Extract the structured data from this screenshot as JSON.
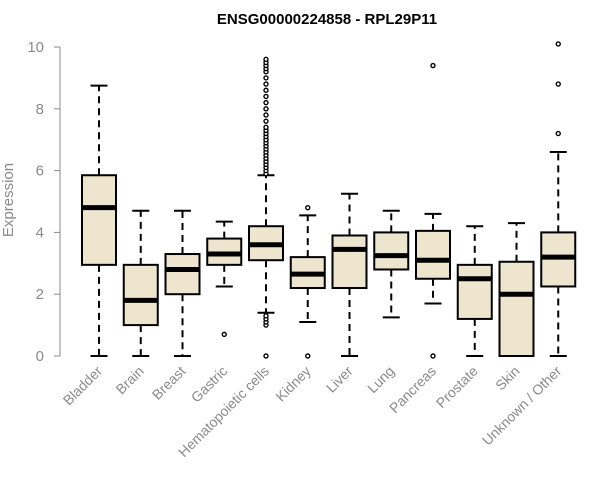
{
  "chart_data": {
    "type": "boxplot",
    "title": "ENSG00000224858 - RPL29P11",
    "xlabel": "",
    "ylabel": "Expression",
    "ylim": [
      0,
      10.5
    ],
    "yticks": [
      0,
      2,
      4,
      6,
      8,
      10
    ],
    "box_fill": "#ede5cd",
    "box_stroke": "#000000",
    "axis_color": "#8a8a8a",
    "categories": [
      "Bladder",
      "Brain",
      "Breast",
      "Gastric",
      "Hematopoietic cells",
      "Kidney",
      "Liver",
      "Lung",
      "Pancreas",
      "Prostate",
      "Skin",
      "Unknown / Other"
    ],
    "boxes": [
      {
        "name": "Bladder",
        "whisker_low": 0.0,
        "q1": 2.95,
        "median": 4.8,
        "q3": 5.85,
        "whisker_high": 8.75,
        "outliers": []
      },
      {
        "name": "Brain",
        "whisker_low": 0.0,
        "q1": 1.0,
        "median": 1.8,
        "q3": 2.95,
        "whisker_high": 4.7,
        "outliers": []
      },
      {
        "name": "Breast",
        "whisker_low": 0.0,
        "q1": 2.0,
        "median": 2.8,
        "q3": 3.3,
        "whisker_high": 4.7,
        "outliers": []
      },
      {
        "name": "Gastric",
        "whisker_low": 2.25,
        "q1": 2.95,
        "median": 3.3,
        "q3": 3.8,
        "whisker_high": 4.35,
        "outliers": [
          0.7
        ]
      },
      {
        "name": "Hematopoietic cells",
        "whisker_low": 1.4,
        "q1": 3.1,
        "median": 3.6,
        "q3": 4.2,
        "whisker_high": 5.85,
        "outliers": [
          0.0,
          1.0,
          1.1,
          1.2,
          1.3,
          5.9,
          6.0,
          6.1,
          6.2,
          6.3,
          6.4,
          6.5,
          6.6,
          6.7,
          6.8,
          6.9,
          7.0,
          7.1,
          7.2,
          7.3,
          7.4,
          7.6,
          7.8,
          8.0,
          8.2,
          8.4,
          8.6,
          8.8,
          9.0,
          9.2,
          9.3,
          9.4,
          9.5,
          9.6
        ]
      },
      {
        "name": "Kidney",
        "whisker_low": 1.1,
        "q1": 2.2,
        "median": 2.65,
        "q3": 3.2,
        "whisker_high": 4.55,
        "outliers": [
          0.0,
          4.8
        ]
      },
      {
        "name": "Liver",
        "whisker_low": 0.0,
        "q1": 2.2,
        "median": 3.45,
        "q3": 3.9,
        "whisker_high": 5.25,
        "outliers": []
      },
      {
        "name": "Lung",
        "whisker_low": 1.25,
        "q1": 2.8,
        "median": 3.25,
        "q3": 4.0,
        "whisker_high": 4.7,
        "outliers": []
      },
      {
        "name": "Pancreas",
        "whisker_low": 1.7,
        "q1": 2.5,
        "median": 3.1,
        "q3": 4.05,
        "whisker_high": 4.6,
        "outliers": [
          0.0,
          9.4
        ]
      },
      {
        "name": "Prostate",
        "whisker_low": 0.0,
        "q1": 1.2,
        "median": 2.5,
        "q3": 2.95,
        "whisker_high": 4.2,
        "outliers": []
      },
      {
        "name": "Skin",
        "whisker_low": 0.0,
        "q1": 0.0,
        "median": 2.0,
        "q3": 3.05,
        "whisker_high": 4.3,
        "outliers": []
      },
      {
        "name": "Unknown / Other",
        "whisker_low": 0.0,
        "q1": 2.25,
        "median": 3.2,
        "q3": 4.0,
        "whisker_high": 6.6,
        "outliers": [
          7.2,
          8.8,
          10.1
        ]
      }
    ]
  }
}
